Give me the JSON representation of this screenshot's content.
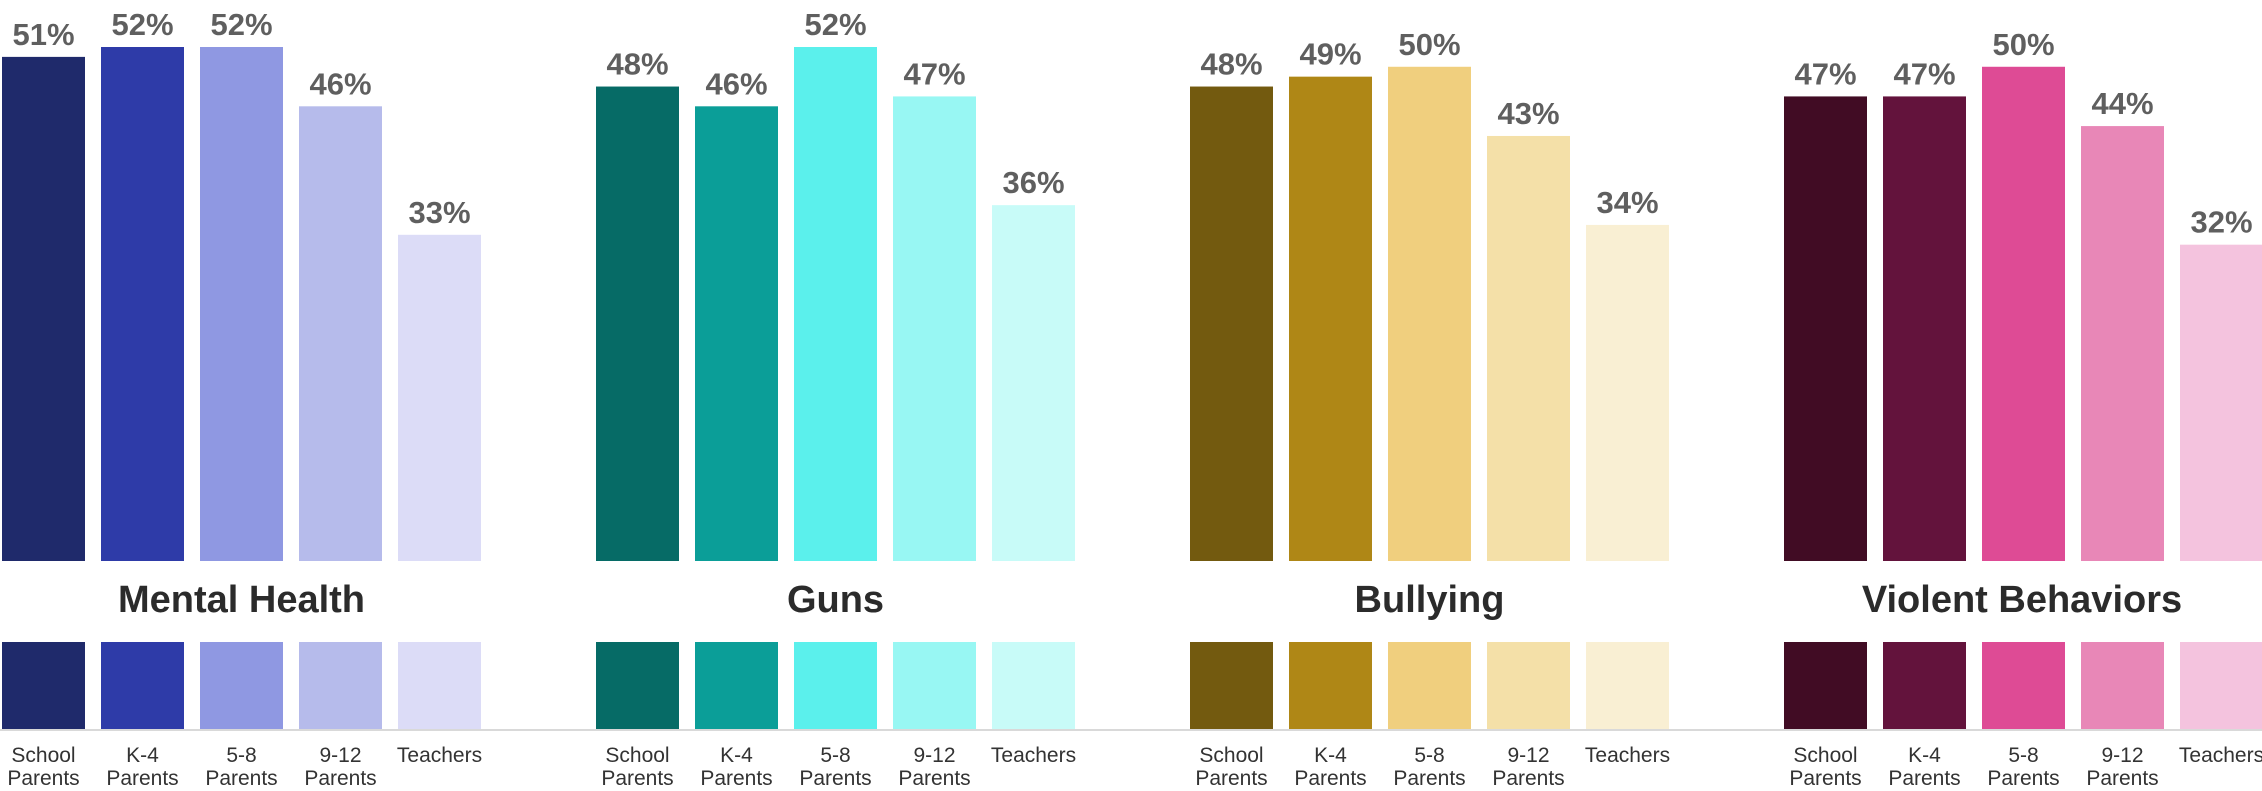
{
  "chart_data": {
    "type": "bar",
    "unit": "%",
    "ylim": [
      0,
      52
    ],
    "categories": [
      "School\nParents",
      "K-4\nParents",
      "5-8\nParents",
      "9-12\nParents",
      "Teachers"
    ],
    "groups": [
      {
        "title": "Mental Health",
        "values": [
          51,
          52,
          52,
          46,
          33
        ],
        "labels": [
          "51%",
          "52%",
          "52%",
          "46%",
          "33%"
        ],
        "colors": [
          "#1f2a6b",
          "#2e3ba8",
          "#8f98e2",
          "#b6bbeb",
          "#dcdcf7"
        ]
      },
      {
        "title": "Guns",
        "values": [
          48,
          46,
          52,
          47,
          36
        ],
        "labels": [
          "48%",
          "46%",
          "52%",
          "47%",
          "36%"
        ],
        "colors": [
          "#066b66",
          "#0b9e98",
          "#5bf0ec",
          "#98f7f3",
          "#c8fbf8"
        ]
      },
      {
        "title": "Bullying",
        "values": [
          48,
          49,
          50,
          43,
          34
        ],
        "labels": [
          "48%",
          "49%",
          "50%",
          "43%",
          "34%"
        ],
        "colors": [
          "#735a0f",
          "#af8716",
          "#f0cf7e",
          "#f4e0a8",
          "#f9efd3"
        ]
      },
      {
        "title": "Violent Behaviors",
        "values": [
          47,
          47,
          50,
          44,
          32
        ],
        "labels": [
          "47%",
          "47%",
          "50%",
          "44%",
          "32%"
        ],
        "colors": [
          "#410c24",
          "#63133c",
          "#de4b95",
          "#e887b7",
          "#f4c3de"
        ]
      }
    ],
    "legend": "below-each-group"
  }
}
